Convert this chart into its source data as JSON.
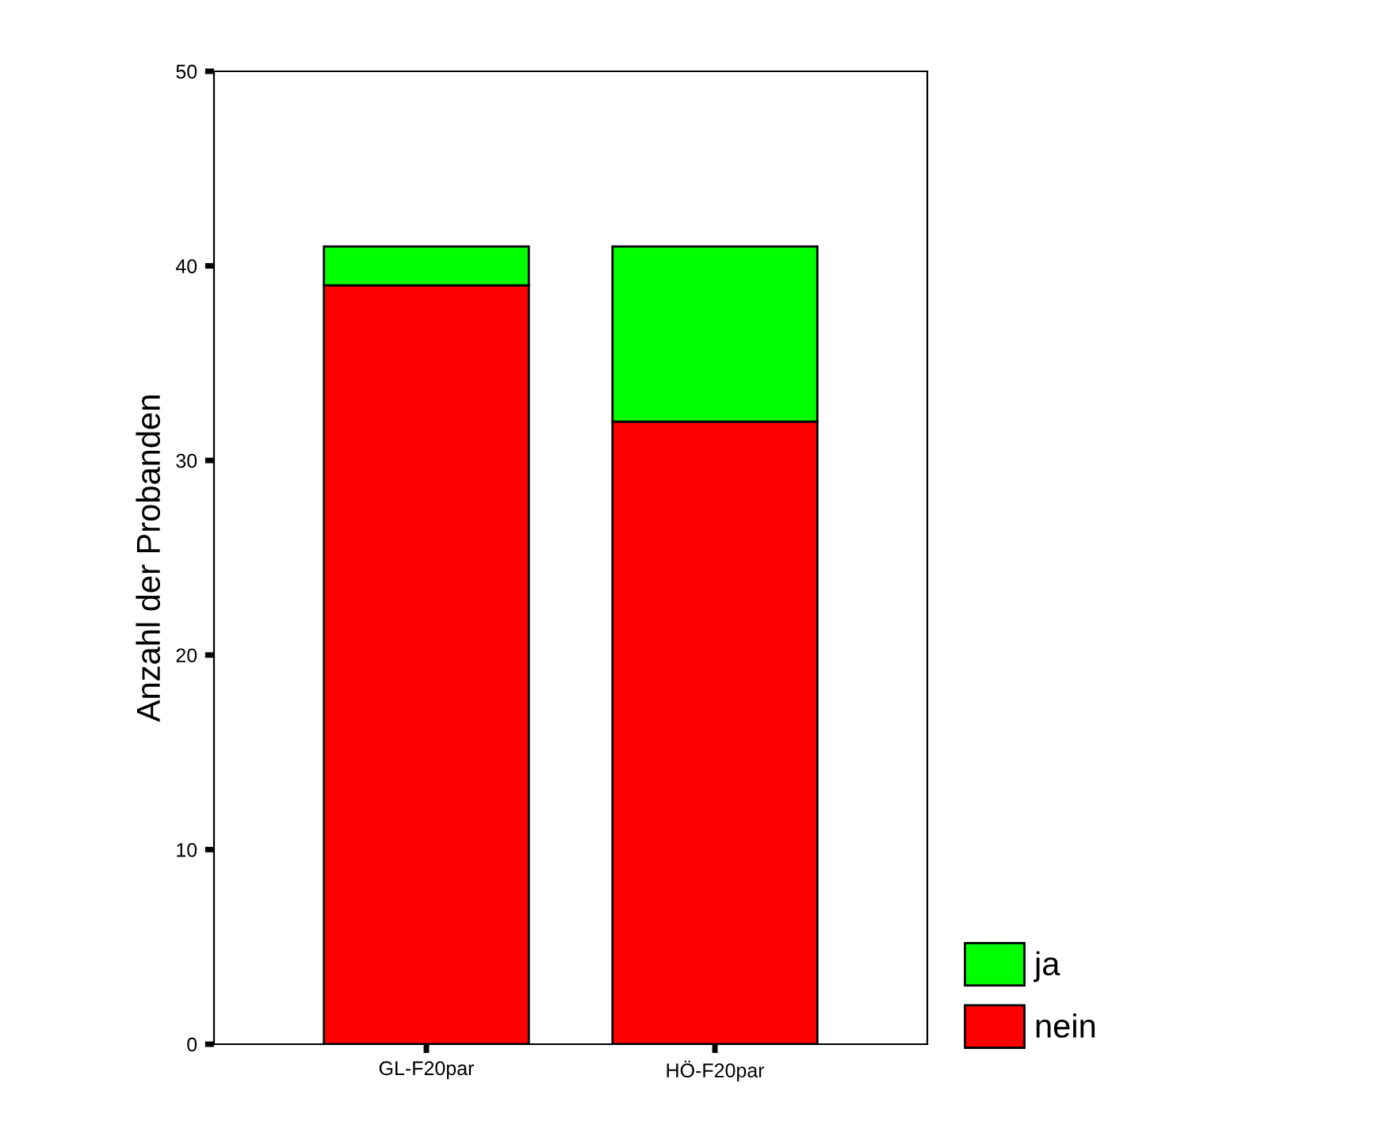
{
  "chart_data": {
    "type": "bar",
    "stacked": true,
    "ylabel": "Anzahl der Probanden",
    "categories": [
      "GL-F20par",
      "HÖ-F20par"
    ],
    "series": [
      {
        "name": "nein",
        "color": "#ff0000",
        "values": [
          39,
          32
        ]
      },
      {
        "name": "ja",
        "color": "#00ff00",
        "values": [
          2,
          9
        ]
      }
    ],
    "ylim": [
      0,
      50
    ],
    "yticks": [
      0,
      10,
      20,
      30,
      40,
      50
    ],
    "grid": false,
    "legend": "bottom right"
  }
}
